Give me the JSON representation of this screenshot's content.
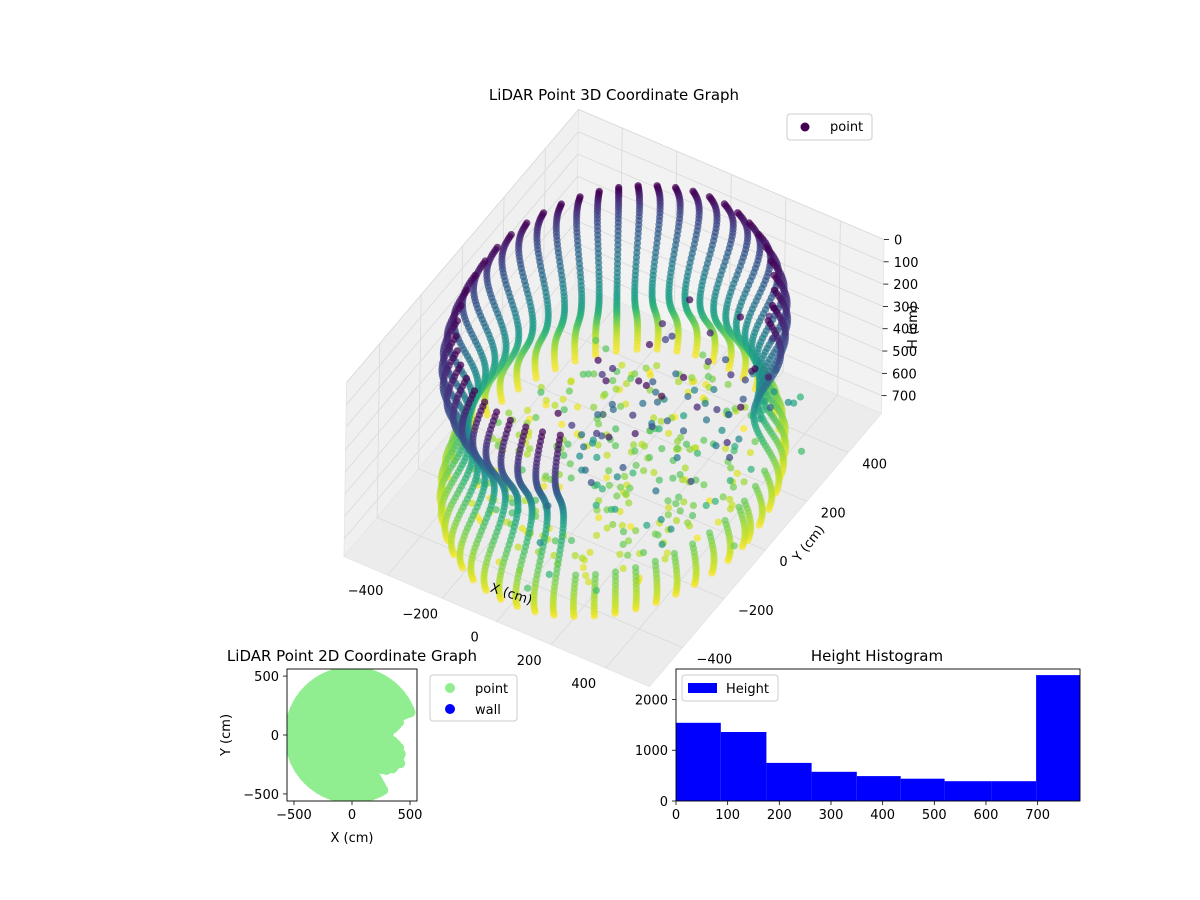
{
  "chart_data": [
    {
      "type": "scatter",
      "projection": "3d",
      "title": "LiDAR Point 3D Coordinate Graph",
      "xlabel": "X (cm)",
      "ylabel": "Y (cm)",
      "zlabel": "H (cm)",
      "xlim": [
        -560,
        560
      ],
      "ylim": [
        -560,
        560
      ],
      "zlim": [
        780,
        0
      ],
      "xticks": [
        "−400",
        "−200",
        "0",
        "200",
        "400"
      ],
      "yticks": [
        "−400",
        "−200",
        "0",
        "200",
        "400"
      ],
      "zticks": [
        "0",
        "100",
        "200",
        "300",
        "400",
        "500",
        "600",
        "700"
      ],
      "legend": {
        "position": "top-right",
        "entries": [
          "point"
        ]
      },
      "colormap": "viridis",
      "color_by": "height",
      "grid": true,
      "series": [
        {
          "name": "point",
          "description": "cylindrical wall of points, radius ~500 cm, heights 0-780 cm, scan lines every ~7 degrees",
          "wall_radius": 500,
          "h_max": 780,
          "scan_line_step_deg": 7,
          "gap_angle_range_deg": [
            -70,
            20
          ]
        }
      ]
    },
    {
      "type": "scatter",
      "title": "LiDAR Point 2D Coordinate Graph",
      "xlabel": "X (cm)",
      "ylabel": "Y (cm)",
      "xlim": [
        -560,
        560
      ],
      "ylim": [
        -560,
        560
      ],
      "xticks": [
        "−500",
        "0",
        "500"
      ],
      "yticks": [
        "−500",
        "0",
        "500"
      ],
      "legend": {
        "position": "outside-right",
        "entries": [
          "point",
          "wall"
        ]
      },
      "series": [
        {
          "name": "point",
          "color": "#90ee90"
        },
        {
          "name": "wall",
          "color": "#0000ff"
        }
      ]
    },
    {
      "type": "bar",
      "subtype": "histogram",
      "title": "Height Histogram",
      "xlabel": "",
      "ylabel": "",
      "xlim": [
        0,
        782
      ],
      "ylim": [
        0,
        2600
      ],
      "xticks": [
        "0",
        "100",
        "200",
        "300",
        "400",
        "500",
        "600",
        "700"
      ],
      "yticks": [
        "0",
        "1000",
        "2000"
      ],
      "legend": {
        "position": "top-left",
        "entries": [
          "Height"
        ]
      },
      "color": "#0000ff",
      "bin_edges": [
        0,
        86.8,
        175,
        262.5,
        350,
        435,
        520,
        610,
        697,
        782
      ],
      "values": [
        1540,
        1360,
        750,
        575,
        490,
        440,
        390,
        390,
        2480
      ]
    }
  ]
}
